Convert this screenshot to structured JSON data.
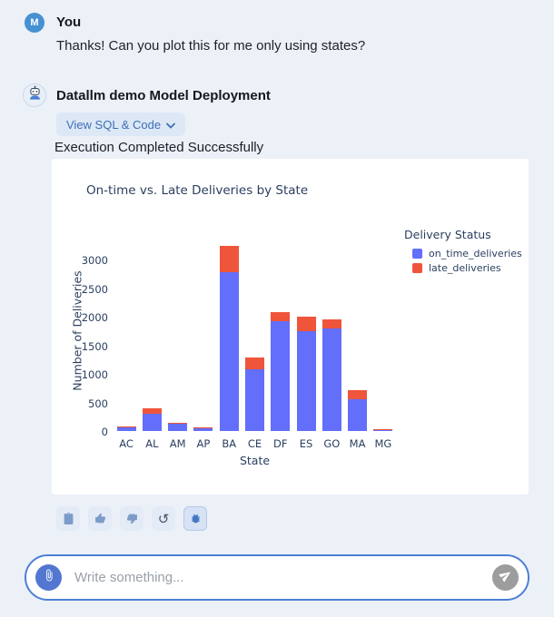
{
  "user_message": {
    "avatar_initial": "M",
    "sender": "You",
    "text": "Thanks! Can you plot this for me only using states?"
  },
  "bot_message": {
    "sender": "Datallm demo Model Deployment",
    "view_sql_label": "View SQL & Code",
    "status_text": "Execution Completed Successfully",
    "actions": [
      {
        "name": "copy",
        "icon": "clipboard-icon"
      },
      {
        "name": "thumbs-up",
        "icon": "thumbs-up-icon"
      },
      {
        "name": "thumbs-down",
        "icon": "thumbs-down-icon"
      },
      {
        "name": "regenerate",
        "icon": "undo-icon"
      },
      {
        "name": "report-bug",
        "icon": "bug-icon"
      }
    ]
  },
  "chart_data": {
    "type": "bar",
    "stacked": true,
    "title": "On-time vs. Late Deliveries by State",
    "xlabel": "State",
    "ylabel": "Number of Deliveries",
    "legend_title": "Delivery Status",
    "legend_position": "right",
    "grid": false,
    "categories": [
      "AC",
      "AL",
      "AM",
      "AP",
      "BA",
      "CE",
      "DF",
      "ES",
      "GO",
      "MA",
      "MG"
    ],
    "series": [
      {
        "name": "on_time_deliveries",
        "color": "#636EFA",
        "values": [
          70,
          295,
          132,
          55,
          2790,
          1080,
          1930,
          1745,
          1790,
          560,
          18
        ]
      },
      {
        "name": "late_deliveries",
        "color": "#EF553B",
        "values": [
          12,
          105,
          10,
          8,
          455,
          205,
          155,
          260,
          170,
          150,
          6
        ]
      }
    ],
    "ylim": [
      0,
      3500
    ],
    "yticks": [
      0,
      500,
      1000,
      1500,
      2000,
      2500,
      3000
    ]
  },
  "composer": {
    "placeholder": "Write something..."
  },
  "colors": {
    "page_background": "#ecf0f7",
    "card_background": "#ffffff",
    "accent_blue": "#4d7fd6",
    "user_avatar": "#4691d1",
    "on_time_bar": "#636EFA",
    "late_bar": "#EF553B",
    "chart_text": "#2a3f5f"
  }
}
